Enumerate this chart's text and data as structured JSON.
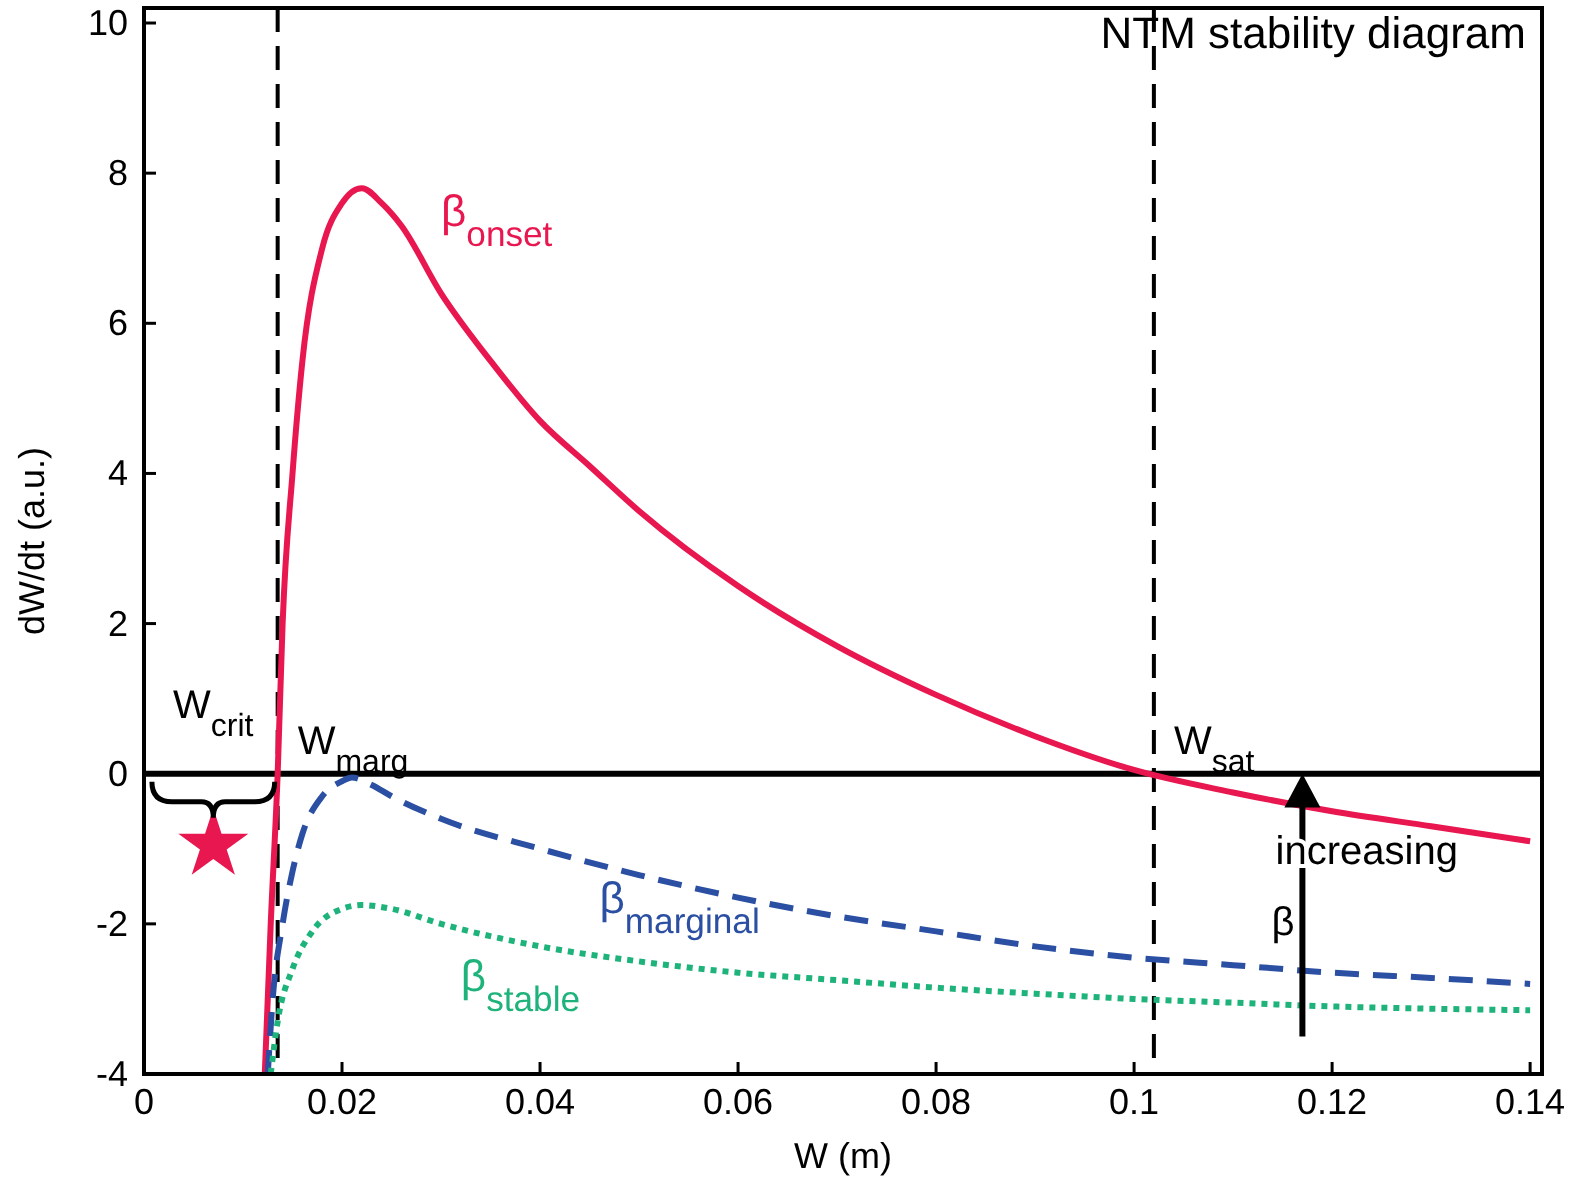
{
  "chart_data": {
    "type": "line",
    "title": "NTM stability diagram",
    "xlabel": "W (m)",
    "ylabel": "dW/dt (a.u.)",
    "xlim": [
      0,
      0.1412
    ],
    "ylim": [
      -4,
      10.2
    ],
    "xticks": [
      0,
      0.02,
      0.04,
      0.06,
      0.08,
      0.1,
      0.12,
      0.14
    ],
    "yticks": [
      -4,
      -2,
      0,
      2,
      4,
      6,
      8,
      10
    ],
    "grid": false,
    "series": [
      {
        "name": "β$_{onset}$",
        "color": "#e8174f",
        "line_style": "solid",
        "x": [
          0.0122,
          0.0128,
          0.0135,
          0.014,
          0.015,
          0.016,
          0.018,
          0.02,
          0.022,
          0.024,
          0.026,
          0.03,
          0.035,
          0.04,
          0.045,
          0.05,
          0.06,
          0.07,
          0.08,
          0.09,
          0.1,
          0.11,
          0.12,
          0.13,
          0.14
        ],
        "values": [
          -4,
          -2,
          0,
          2,
          4,
          5.5,
          7,
          7.6,
          7.8,
          7.6,
          7.3,
          6.4,
          5.5,
          4.7,
          4.1,
          3.5,
          2.5,
          1.7,
          1.05,
          0.5,
          0.05,
          -0.25,
          -0.5,
          -0.7,
          -0.9
        ]
      },
      {
        "name": "β$_{marginal}$",
        "color": "#2b4fa2",
        "line_style": "dashed",
        "x": [
          0.0125,
          0.013,
          0.014,
          0.015,
          0.016,
          0.018,
          0.02,
          0.021,
          0.023,
          0.025,
          0.03,
          0.04,
          0.05,
          0.06,
          0.07,
          0.08,
          0.09,
          0.1,
          0.11,
          0.12,
          0.13,
          0.14
        ],
        "values": [
          -4,
          -3,
          -2,
          -1.3,
          -0.8,
          -0.3,
          -0.1,
          -0.05,
          -0.15,
          -0.3,
          -0.6,
          -1.0,
          -1.35,
          -1.65,
          -1.9,
          -2.1,
          -2.3,
          -2.45,
          -2.55,
          -2.65,
          -2.72,
          -2.8
        ]
      },
      {
        "name": "β$_{stable}$",
        "color": "#1db37a",
        "line_style": "dotted",
        "x": [
          0.0128,
          0.0135,
          0.015,
          0.017,
          0.02,
          0.022,
          0.025,
          0.03,
          0.04,
          0.05,
          0.06,
          0.07,
          0.08,
          0.09,
          0.1,
          0.11,
          0.12,
          0.13,
          0.14
        ],
        "values": [
          -4,
          -3.3,
          -2.6,
          -2.1,
          -1.8,
          -1.75,
          -1.8,
          -2.0,
          -2.3,
          -2.5,
          -2.65,
          -2.75,
          -2.85,
          -2.93,
          -3.0,
          -3.05,
          -3.1,
          -3.13,
          -3.15
        ]
      },
      {
        "type": "scatter",
        "marker": "star",
        "color": "#e8174f",
        "x": [
          0.007
        ],
        "values": [
          -0.95
        ]
      }
    ],
    "ref_lines": [
      {
        "axis": "y",
        "value": 0,
        "color": "#000000",
        "line_style": "solid"
      },
      {
        "axis": "x",
        "value": 0.0135,
        "label": "W$_{marg}$",
        "color": "#000000",
        "line_style": "dashed"
      },
      {
        "axis": "x",
        "value": 0.102,
        "label": "W$_{sat}$",
        "color": "#000000",
        "line_style": "dashed"
      }
    ],
    "annotations": [
      {
        "text": "W$_{crit}$",
        "x": 0.007,
        "y": 0
      },
      "increasing",
      "β"
    ]
  }
}
